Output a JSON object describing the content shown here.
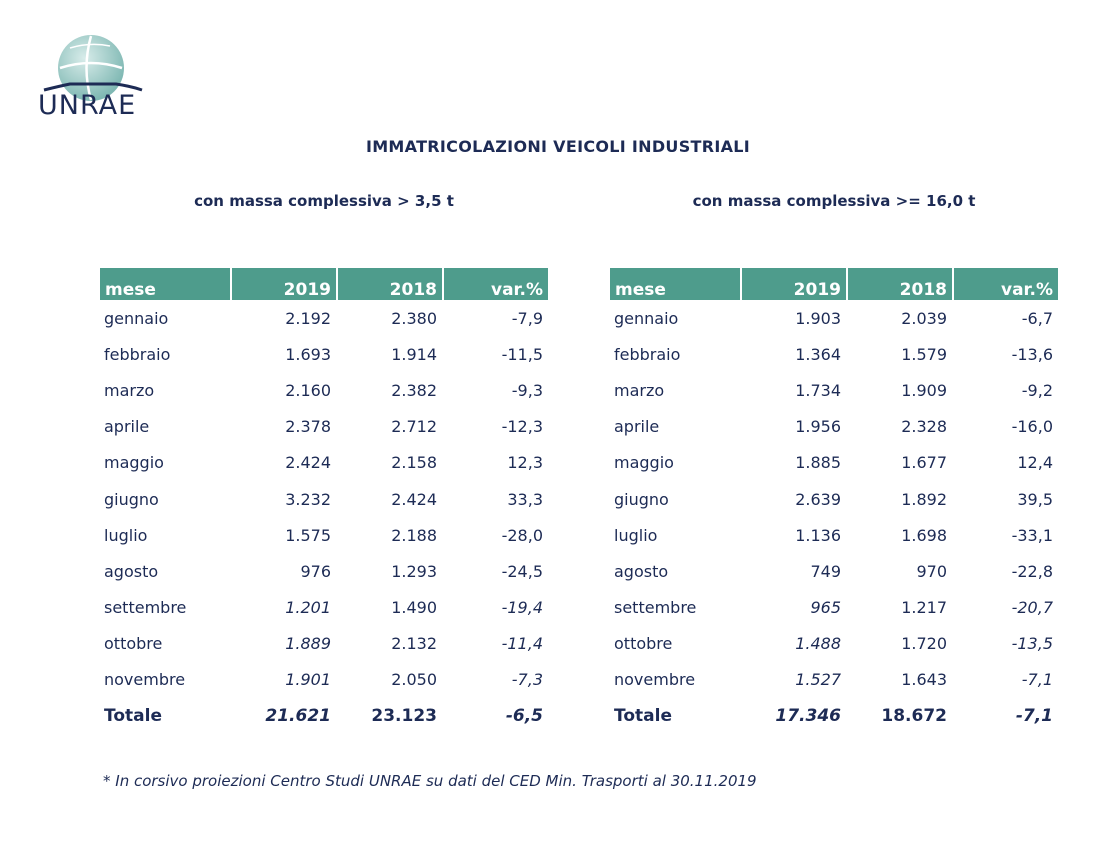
{
  "logo_text": "UNRAE",
  "title": "IMMATRICOLAZIONI VEICOLI INDUSTRIALI",
  "left": {
    "subtitle": "con massa complessiva > 3,5 t",
    "headers": [
      "mese",
      "2019",
      "2018",
      "var.%"
    ],
    "rows": [
      {
        "mese": "gennaio",
        "v2019": "2.192",
        "v2018": "2.380",
        "var": "-7,9",
        "proj": false
      },
      {
        "mese": "febbraio",
        "v2019": "1.693",
        "v2018": "1.914",
        "var": "-11,5",
        "proj": false
      },
      {
        "mese": "marzo",
        "v2019": "2.160",
        "v2018": "2.382",
        "var": "-9,3",
        "proj": false
      },
      {
        "mese": "aprile",
        "v2019": "2.378",
        "v2018": "2.712",
        "var": "-12,3",
        "proj": false
      },
      {
        "mese": "maggio",
        "v2019": "2.424",
        "v2018": "2.158",
        "var": "12,3",
        "proj": false
      },
      {
        "mese": "giugno",
        "v2019": "3.232",
        "v2018": "2.424",
        "var": "33,3",
        "proj": false
      },
      {
        "mese": "luglio",
        "v2019": "1.575",
        "v2018": "2.188",
        "var": "-28,0",
        "proj": false
      },
      {
        "mese": "agosto",
        "v2019": "976",
        "v2018": "1.293",
        "var": "-24,5",
        "proj": false
      },
      {
        "mese": "settembre",
        "v2019": "1.201",
        "v2018": "1.490",
        "var": "-19,4",
        "proj": true
      },
      {
        "mese": "ottobre",
        "v2019": "1.889",
        "v2018": "2.132",
        "var": "-11,4",
        "proj": true
      },
      {
        "mese": "novembre",
        "v2019": "1.901",
        "v2018": "2.050",
        "var": "-7,3",
        "proj": true
      }
    ],
    "total": {
      "mese": "Totale",
      "v2019": "21.621",
      "v2018": "23.123",
      "var": "-6,5"
    }
  },
  "right": {
    "subtitle": "con massa complessiva >= 16,0 t",
    "headers": [
      "mese",
      "2019",
      "2018",
      "var.%"
    ],
    "rows": [
      {
        "mese": "gennaio",
        "v2019": "1.903",
        "v2018": "2.039",
        "var": "-6,7",
        "proj": false
      },
      {
        "mese": "febbraio",
        "v2019": "1.364",
        "v2018": "1.579",
        "var": "-13,6",
        "proj": false
      },
      {
        "mese": "marzo",
        "v2019": "1.734",
        "v2018": "1.909",
        "var": "-9,2",
        "proj": false
      },
      {
        "mese": "aprile",
        "v2019": "1.956",
        "v2018": "2.328",
        "var": "-16,0",
        "proj": false
      },
      {
        "mese": "maggio",
        "v2019": "1.885",
        "v2018": "1.677",
        "var": "12,4",
        "proj": false
      },
      {
        "mese": "giugno",
        "v2019": "2.639",
        "v2018": "1.892",
        "var": "39,5",
        "proj": false
      },
      {
        "mese": "luglio",
        "v2019": "1.136",
        "v2018": "1.698",
        "var": "-33,1",
        "proj": false
      },
      {
        "mese": "agosto",
        "v2019": "749",
        "v2018": "970",
        "var": "-22,8",
        "proj": false
      },
      {
        "mese": "settembre",
        "v2019": "965",
        "v2018": "1.217",
        "var": "-20,7",
        "proj": true
      },
      {
        "mese": "ottobre",
        "v2019": "1.488",
        "v2018": "1.720",
        "var": "-13,5",
        "proj": true
      },
      {
        "mese": "novembre",
        "v2019": "1.527",
        "v2018": "1.643",
        "var": "-7,1",
        "proj": true
      }
    ],
    "total": {
      "mese": "Totale",
      "v2019": "17.346",
      "v2018": "18.672",
      "var": "-7,1"
    }
  },
  "footnote": "* In corsivo proiezioni Centro Studi UNRAE su dati del CED Min. Trasporti al 30.11.2019",
  "colors": {
    "header_bg": "#4e9c8c",
    "text": "#1d2b55",
    "logo_globe": "#8fc3bf"
  }
}
